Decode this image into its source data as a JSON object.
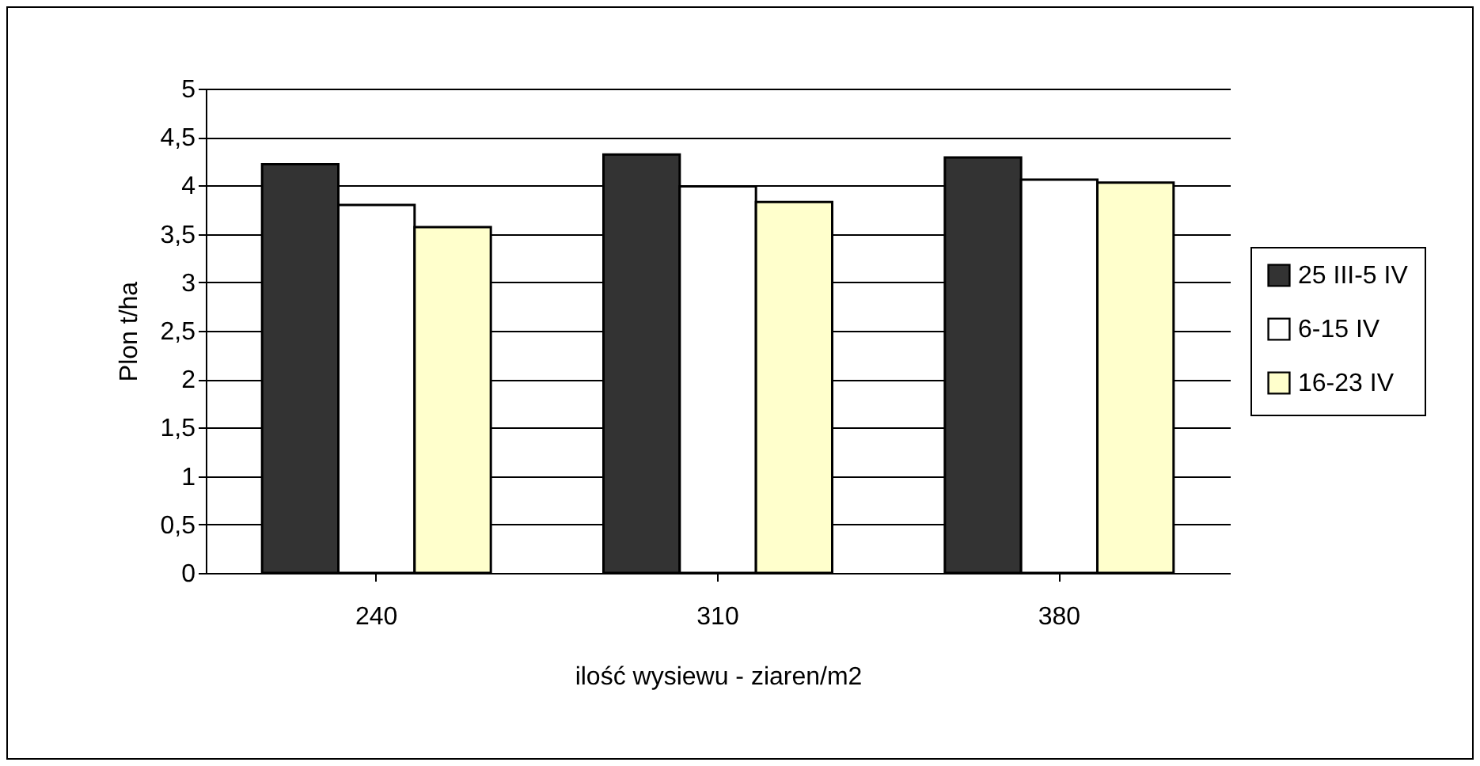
{
  "chart_data": {
    "type": "bar",
    "xlabel": "ilość wysiewu - ziaren/m2",
    "ylabel": "Plon t/ha",
    "categories": [
      "240",
      "310",
      "380"
    ],
    "series": [
      {
        "name": "25 III-5 IV",
        "color": "#333333",
        "values": [
          4.22,
          4.32,
          4.29
        ]
      },
      {
        "name": "6-15 IV",
        "color": "#ffffff",
        "values": [
          3.8,
          3.99,
          4.06
        ]
      },
      {
        "name": "16-23 IV",
        "color": "#ffffcc",
        "values": [
          3.57,
          3.83,
          4.03
        ]
      }
    ],
    "ylim": [
      0,
      5
    ],
    "yticks": [
      0,
      {
        "value": 0.5,
        "label": "0,5"
      },
      1,
      {
        "value": 1.5,
        "label": "1,5"
      },
      2,
      {
        "value": 2.5,
        "label": "2,5"
      },
      3,
      {
        "value": 3.5,
        "label": "3,5"
      },
      4,
      {
        "value": 4.5,
        "label": "4,5"
      },
      5
    ],
    "grid": "y",
    "legend": "right"
  }
}
